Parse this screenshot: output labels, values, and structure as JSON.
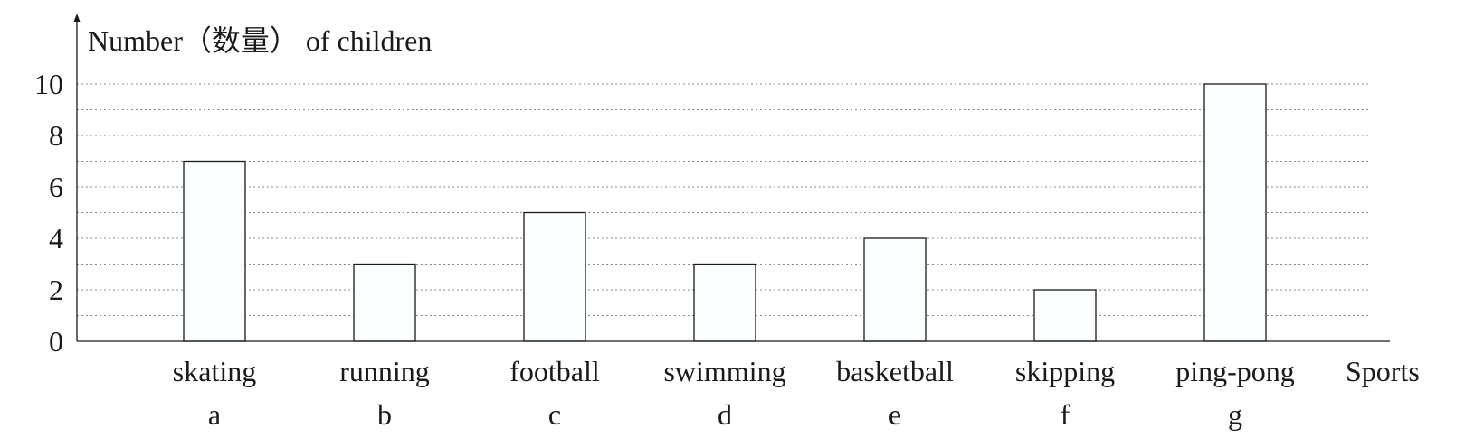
{
  "chart_data": {
    "type": "bar",
    "ylabel": "Number（数量） of children",
    "xlabel": "Sports",
    "categories": [
      "skating",
      "running",
      "football",
      "swimming",
      "basketball",
      "skipping",
      "ping-pong"
    ],
    "letters": [
      "a",
      "b",
      "c",
      "d",
      "e",
      "f",
      "g"
    ],
    "values": [
      7,
      3,
      5,
      3,
      4,
      2,
      10
    ],
    "yticks": [
      0,
      2,
      4,
      6,
      8,
      10
    ],
    "ylim": [
      0,
      10
    ],
    "grid": true,
    "colors": {
      "bar_fill": "#fbffff",
      "bar_stroke": "#1a1a1a",
      "grid": "#8a8a8a",
      "axis": "#1a1a1a"
    }
  }
}
